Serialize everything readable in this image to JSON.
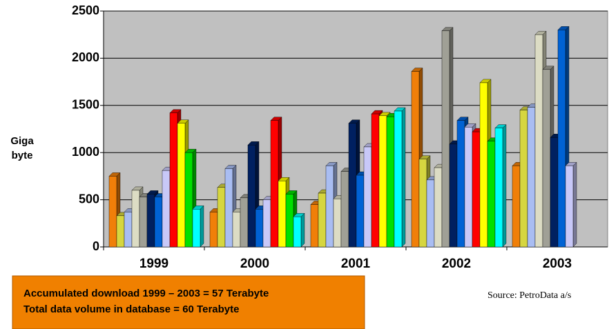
{
  "chart_data": {
    "type": "bar3d",
    "categories": [
      "1999",
      "2000",
      "2001",
      "2002",
      "2003"
    ],
    "y_label": [
      "Giga",
      "byte"
    ],
    "ylim": [
      0,
      2500
    ],
    "yticks": [
      0,
      500,
      1000,
      1500,
      2000,
      2500
    ],
    "grid": true,
    "series": [
      {
        "color": "#f07f09",
        "values": [
          750,
          370,
          450,
          1860,
          860
        ]
      },
      {
        "color": "#d6d640",
        "values": [
          330,
          630,
          570,
          930,
          1450
        ]
      },
      {
        "color": "#a9bdf2",
        "values": [
          370,
          830,
          860,
          710,
          1480
        ]
      },
      {
        "color": "#dcdcc4",
        "values": [
          600,
          370,
          510,
          840,
          2250
        ]
      },
      {
        "color": "#a0a096",
        "values": [
          530,
          520,
          800,
          2290,
          1880
        ]
      },
      {
        "color": "#002060",
        "values": [
          560,
          1080,
          1310,
          1090,
          1160
        ]
      },
      {
        "color": "#0062d4",
        "values": [
          530,
          400,
          760,
          1340,
          2300
        ]
      },
      {
        "color": "#c8c8f8",
        "values": [
          810,
          500,
          1060,
          1270,
          860
        ]
      },
      {
        "color": "#ff0000",
        "values": [
          1420,
          1340,
          1410,
          1220,
          null
        ]
      },
      {
        "color": "#ffff00",
        "values": [
          1310,
          700,
          1390,
          1740,
          null
        ]
      },
      {
        "color": "#00e000",
        "values": [
          1000,
          560,
          1380,
          1120,
          null
        ]
      },
      {
        "color": "#00ffff",
        "values": [
          400,
          320,
          1440,
          1260,
          null
        ]
      }
    ],
    "annotations": {
      "box": [
        "Accumulated download 1999 – 2003 = 57 Terabyte",
        "Total data volume in database = 60 Terabyte"
      ],
      "source": "Source: PetroData a/s"
    }
  }
}
